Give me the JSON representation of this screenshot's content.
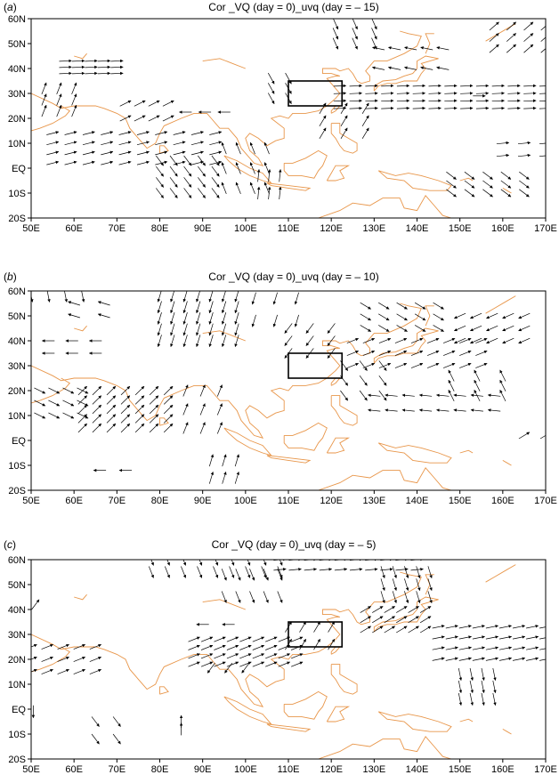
{
  "panels": [
    {
      "label": "(a)",
      "label_letter": "a",
      "title": "Cor _VQ (day = 0)_uvq (day = – 15)"
    },
    {
      "label": "(b)",
      "label_letter": "b",
      "title": "Cor _VQ (day = 0)_uvq (day = – 10)"
    },
    {
      "label": "(c)",
      "label_letter": "c",
      "title": "Cor _VQ (day = 0)_uvq (day = – 5)"
    }
  ],
  "x_ticks": [
    "50E",
    "60E",
    "70E",
    "80E",
    "90E",
    "100E",
    "110E",
    "120E",
    "130E",
    "140E",
    "150E",
    "160E",
    "170E"
  ],
  "y_ticks": [
    "60N",
    "50N",
    "40N",
    "30N",
    "20N",
    "10N",
    "EQ",
    "10S",
    "20S"
  ],
  "lon_range": [
    50,
    170
  ],
  "lat_range": [
    -20,
    60
  ],
  "box_region": {
    "lon": [
      110,
      122.5
    ],
    "lat": [
      25,
      35
    ]
  },
  "colors": {
    "coast": "#e8964a",
    "arrow": "#000000",
    "frame": "#000000"
  },
  "arrow_groups": [
    [
      {
        "lon": [
          58,
          70
        ],
        "lat": [
          38,
          43
        ],
        "dir": [
          1,
          0.05
        ],
        "rows": 3,
        "cols": 5
      },
      {
        "lon": [
          53,
          60
        ],
        "lat": [
          23,
          32
        ],
        "dir": [
          0.4,
          1
        ],
        "rows": 3,
        "cols": 3
      },
      {
        "lon": [
          72,
          82
        ],
        "lat": [
          20,
          26
        ],
        "dir": [
          1,
          0.5
        ],
        "rows": 2,
        "cols": 4
      },
      {
        "lon": [
          55,
          93
        ],
        "lat": [
          2,
          14
        ],
        "dir": [
          1,
          0.25
        ],
        "rows": 4,
        "cols": 10
      },
      {
        "lon": [
          80,
          93
        ],
        "lat": [
          -10,
          3
        ],
        "dir": [
          0.6,
          -0.8
        ],
        "rows": 4,
        "cols": 5
      },
      {
        "lon": [
          86,
          95
        ],
        "lat": [
          20,
          25
        ],
        "dir": [
          -1,
          0
        ],
        "rows": 1,
        "cols": 3
      },
      {
        "lon": [
          95,
          105
        ],
        "lat": [
          -8,
          8
        ],
        "dir": [
          -0.4,
          1
        ],
        "rows": 3,
        "cols": 4
      },
      {
        "lon": [
          103,
          108
        ],
        "lat": [
          -10,
          -3
        ],
        "dir": [
          0.1,
          1
        ],
        "rows": 2,
        "cols": 3
      },
      {
        "lon": [
          106,
          110
        ],
        "lat": [
          28,
          36
        ],
        "dir": [
          0.5,
          -0.9
        ],
        "rows": 3,
        "cols": 2
      },
      {
        "lon": [
          122,
          170
        ],
        "lat": [
          24,
          33
        ],
        "dir": [
          1,
          0.05
        ],
        "rows": 4,
        "cols": 14
      },
      {
        "lon": [
          118,
          128
        ],
        "lat": [
          14,
          24
        ],
        "dir": [
          0.6,
          1
        ],
        "rows": 3,
        "cols": 3
      },
      {
        "lon": [
          121,
          130
        ],
        "lat": [
          50,
          58
        ],
        "dir": [
          0.4,
          -0.9
        ],
        "rows": 3,
        "cols": 3
      },
      {
        "lon": [
          131,
          146
        ],
        "lat": [
          40,
          48
        ],
        "dir": [
          -1,
          0.2
        ],
        "rows": 2,
        "cols": 5
      },
      {
        "lon": [
          158,
          170
        ],
        "lat": [
          48,
          57
        ],
        "dir": [
          0.8,
          0.7
        ],
        "rows": 3,
        "cols": 4
      },
      {
        "lon": [
          160,
          170
        ],
        "lat": [
          5,
          10
        ],
        "dir": [
          1,
          0.1
        ],
        "rows": 2,
        "cols": 3
      },
      {
        "lon": [
          148,
          165
        ],
        "lat": [
          -10,
          -3
        ],
        "dir": [
          0.8,
          -0.6
        ],
        "rows": 3,
        "cols": 5
      },
      {
        "lon": [
          153,
          156
        ],
        "lat": [
          28,
          30
        ],
        "dir": [
          1,
          0
        ],
        "rows": 1,
        "cols": 1
      }
    ],
    [
      {
        "lon": [
          50,
          62
        ],
        "lat": [
          56,
          60
        ],
        "dir": [
          0.2,
          -1
        ],
        "rows": 1,
        "cols": 4
      },
      {
        "lon": [
          60,
          67
        ],
        "lat": [
          50,
          55
        ],
        "dir": [
          -1,
          0.3
        ],
        "rows": 2,
        "cols": 2
      },
      {
        "lon": [
          54,
          65
        ],
        "lat": [
          35,
          40
        ],
        "dir": [
          -1,
          0
        ],
        "rows": 2,
        "cols": 3
      },
      {
        "lon": [
          52,
          62
        ],
        "lat": [
          10,
          20
        ],
        "dir": [
          1,
          -0.5
        ],
        "rows": 3,
        "cols": 4
      },
      {
        "lon": [
          62,
          82
        ],
        "lat": [
          5,
          20
        ],
        "dir": [
          0.7,
          0.7
        ],
        "rows": 5,
        "cols": 7
      },
      {
        "lon": [
          66,
          72
        ],
        "lat": [
          -12,
          -12
        ],
        "dir": [
          -1,
          0
        ],
        "rows": 1,
        "cols": 2
      },
      {
        "lon": [
          80,
          98
        ],
        "lat": [
          40,
          58
        ],
        "dir": [
          -0.3,
          -1
        ],
        "rows": 5,
        "cols": 7
      },
      {
        "lon": [
          86,
          94
        ],
        "lat": [
          5,
          20
        ],
        "dir": [
          0.4,
          1
        ],
        "rows": 3,
        "cols": 3
      },
      {
        "lon": [
          92,
          98
        ],
        "lat": [
          -15,
          -8
        ],
        "dir": [
          0.3,
          1
        ],
        "rows": 2,
        "cols": 3
      },
      {
        "lon": [
          102,
          112
        ],
        "lat": [
          48,
          57
        ],
        "dir": [
          -0.3,
          -1
        ],
        "rows": 2,
        "cols": 3
      },
      {
        "lon": [
          110,
          120
        ],
        "lat": [
          35,
          45
        ],
        "dir": [
          -0.6,
          -0.8
        ],
        "rows": 3,
        "cols": 3
      },
      {
        "lon": [
          125,
          155
        ],
        "lat": [
          30,
          40
        ],
        "dir": [
          1,
          0.4
        ],
        "rows": 3,
        "cols": 9
      },
      {
        "lon": [
          123,
          132
        ],
        "lat": [
          18,
          30
        ],
        "dir": [
          0.6,
          -0.8
        ],
        "rows": 3,
        "cols": 3
      },
      {
        "lon": [
          130,
          158
        ],
        "lat": [
          12,
          18
        ],
        "dir": [
          -1,
          0.1
        ],
        "rows": 2,
        "cols": 8
      },
      {
        "lon": [
          148,
          160
        ],
        "lat": [
          18,
          26
        ],
        "dir": [
          -0.5,
          1
        ],
        "rows": 3,
        "cols": 3
      },
      {
        "lon": [
          128,
          145
        ],
        "lat": [
          45,
          54
        ],
        "dir": [
          1,
          -0.6
        ],
        "rows": 3,
        "cols": 5
      },
      {
        "lon": [
          150,
          165
        ],
        "lat": [
          40,
          50
        ],
        "dir": [
          -0.9,
          -0.4
        ],
        "rows": 3,
        "cols": 5
      },
      {
        "lon": [
          165,
          170
        ],
        "lat": [
          0,
          4
        ],
        "dir": [
          1,
          0.6
        ],
        "rows": 1,
        "cols": 2
      }
    ],
    [
      {
        "lon": [
          50,
          52
        ],
        "lat": [
          40,
          44
        ],
        "dir": [
          0.6,
          0.8
        ],
        "rows": 1,
        "cols": 1
      },
      {
        "lon": [
          50,
          65
        ],
        "lat": [
          15,
          25
        ],
        "dir": [
          1,
          0.4
        ],
        "rows": 3,
        "cols": 5
      },
      {
        "lon": [
          50,
          51
        ],
        "lat": [
          -2,
          0
        ],
        "dir": [
          0,
          -1
        ],
        "rows": 1,
        "cols": 1
      },
      {
        "lon": [
          65,
          70
        ],
        "lat": [
          -12,
          -5
        ],
        "dir": [
          0.6,
          -0.8
        ],
        "rows": 2,
        "cols": 2
      },
      {
        "lon": [
          84,
          86
        ],
        "lat": [
          -8,
          -5
        ],
        "dir": [
          0,
          1
        ],
        "rows": 2,
        "cols": 1
      },
      {
        "lon": [
          78,
          108
        ],
        "lat": [
          55,
          60
        ],
        "dir": [
          0.4,
          -1
        ],
        "rows": 2,
        "cols": 9
      },
      {
        "lon": [
          95,
          108
        ],
        "lat": [
          45,
          54
        ],
        "dir": [
          0.4,
          -1
        ],
        "rows": 2,
        "cols": 5
      },
      {
        "lon": [
          108,
          140
        ],
        "lat": [
          56,
          60
        ],
        "dir": [
          1,
          0.1
        ],
        "rows": 2,
        "cols": 10
      },
      {
        "lon": [
          88,
          112
        ],
        "lat": [
          18,
          28
        ],
        "dir": [
          1,
          0.4
        ],
        "rows": 4,
        "cols": 9
      },
      {
        "lon": [
          90,
          96
        ],
        "lat": [
          33,
          35
        ],
        "dir": [
          -1,
          0
        ],
        "rows": 1,
        "cols": 2
      },
      {
        "lon": [
          110,
          120
        ],
        "lat": [
          26,
          33
        ],
        "dir": [
          0.6,
          1
        ],
        "rows": 2,
        "cols": 4
      },
      {
        "lon": [
          132,
          143
        ],
        "lat": [
          45,
          55
        ],
        "dir": [
          0.3,
          -1
        ],
        "rows": 3,
        "cols": 5
      },
      {
        "lon": [
          128,
          142
        ],
        "lat": [
          32,
          40
        ],
        "dir": [
          1,
          0.6
        ],
        "rows": 3,
        "cols": 6
      },
      {
        "lon": [
          145,
          170
        ],
        "lat": [
          20,
          33
        ],
        "dir": [
          1,
          0.2
        ],
        "rows": 4,
        "cols": 9
      },
      {
        "lon": [
          150,
          158
        ],
        "lat": [
          4,
          14
        ],
        "dir": [
          0.2,
          -1
        ],
        "rows": 3,
        "cols": 4
      },
      {
        "lon": [
          92,
          100
        ],
        "lat": [
          15,
          18
        ],
        "dir": [
          -0.6,
          -0.8
        ],
        "rows": 1,
        "cols": 3
      }
    ]
  ]
}
